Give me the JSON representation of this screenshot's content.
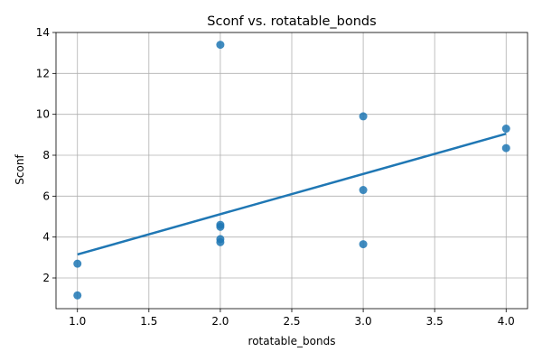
{
  "chart_data": {
    "type": "scatter",
    "title": "Sconf vs. rotatable_bonds",
    "xlabel": "rotatable_bonds",
    "ylabel": "Sconf",
    "xlim": [
      0.85,
      4.15
    ],
    "ylim": [
      0.5,
      14.0
    ],
    "xticks": [
      "1.0",
      "1.5",
      "2.0",
      "2.5",
      "3.0",
      "3.5",
      "4.0"
    ],
    "yticks": [
      "2",
      "4",
      "6",
      "8",
      "10",
      "12",
      "14"
    ],
    "grid": true,
    "color": "#1f77b4",
    "points": [
      {
        "x": 1,
        "y": 2.7
      },
      {
        "x": 1,
        "y": 1.15
      },
      {
        "x": 2,
        "y": 13.4
      },
      {
        "x": 2,
        "y": 4.6
      },
      {
        "x": 2,
        "y": 4.5
      },
      {
        "x": 2,
        "y": 3.9
      },
      {
        "x": 2,
        "y": 3.75
      },
      {
        "x": 3,
        "y": 9.9
      },
      {
        "x": 3,
        "y": 6.3
      },
      {
        "x": 3,
        "y": 3.65
      },
      {
        "x": 4,
        "y": 9.3
      },
      {
        "x": 4,
        "y": 8.35
      }
    ],
    "trendline": {
      "x": [
        1,
        4
      ],
      "y": [
        3.15,
        9.05
      ]
    }
  }
}
